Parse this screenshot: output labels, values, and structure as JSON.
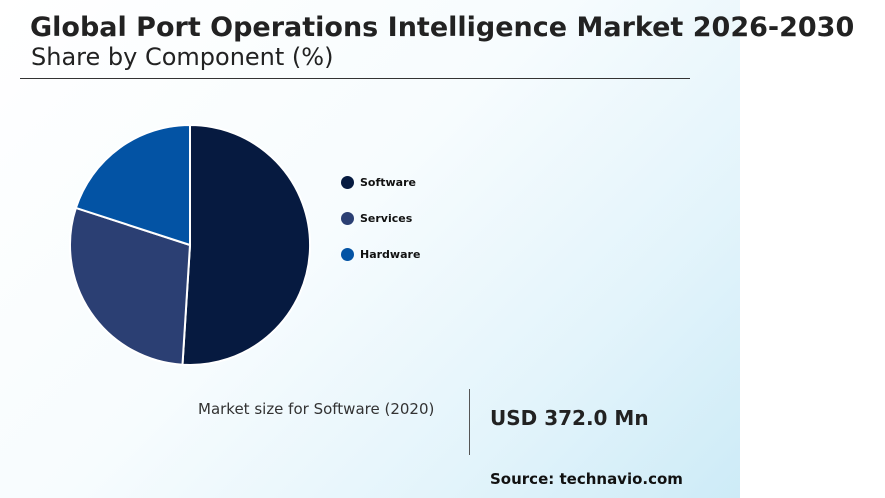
{
  "header": {
    "title": "Global Port Operations Intelligence Market 2026-2030",
    "subtitle": "Share by Component (%)"
  },
  "chart_data": {
    "type": "pie",
    "title": "Share by Component (%)",
    "categories": [
      "Software",
      "Services",
      "Hardware"
    ],
    "values": [
      51,
      29,
      20
    ],
    "colors": [
      "#061a40",
      "#2b3f73",
      "#0353a4"
    ],
    "legend_position": "right"
  },
  "market": {
    "label": "Market size for Software (2020)",
    "value": "USD 372.0 Mn"
  },
  "source": "Source: technavio.com"
}
